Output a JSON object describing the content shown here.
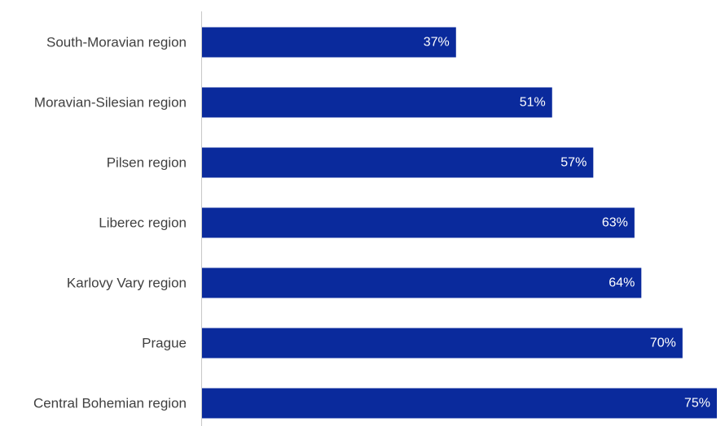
{
  "chart_data": {
    "type": "bar",
    "orientation": "horizontal",
    "categories": [
      "South-Moravian region",
      "Moravian-Silesian region",
      "Pilsen region",
      "Liberec region",
      "Karlovy Vary region",
      "Prague",
      "Central Bohemian region"
    ],
    "values": [
      37,
      51,
      57,
      63,
      64,
      70,
      75
    ],
    "value_labels": [
      "37%",
      "51%",
      "57%",
      "63%",
      "64%",
      "70%",
      "75%"
    ],
    "unit": "%",
    "xlim": [
      0,
      75
    ],
    "grid": false,
    "legend": "none",
    "colors": {
      "bar": "#0a2a9c",
      "axis": "#c8c8c8",
      "category_text": "#404040",
      "value_text": "#ffffff"
    }
  }
}
